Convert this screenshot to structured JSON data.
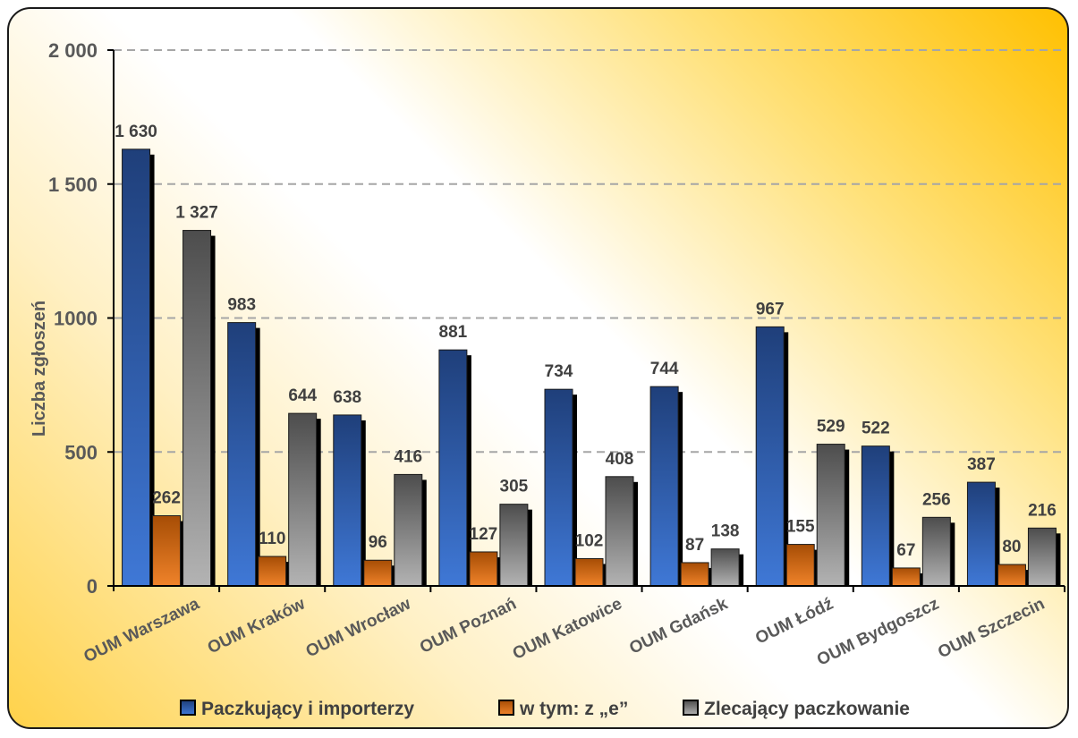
{
  "chart_data": {
    "type": "bar",
    "title": "",
    "xlabel": "",
    "ylabel": "Liczba zgłoszeń",
    "ylim": [
      0,
      2000
    ],
    "yticks": [
      0,
      500,
      1000,
      1500,
      2000
    ],
    "ytick_labels": [
      "0",
      "500",
      "1000",
      "1 500",
      "2 000"
    ],
    "grid": true,
    "legend_position": "bottom",
    "categories": [
      "OUM Warszawa",
      "OUM Kraków",
      "OUM Wrocław",
      "OUM Poznań",
      "OUM Katowice",
      "OUM Gdańsk",
      "OUM Łódź",
      "OUM Bydgoszcz",
      "OUM Szczecin"
    ],
    "series": [
      {
        "name": "Paczkujący i importerzy",
        "color": "#2f5fb3",
        "values": [
          1630,
          983,
          638,
          881,
          734,
          744,
          967,
          522,
          387
        ],
        "labels": [
          "1 630",
          "983",
          "638",
          "881",
          "734",
          "744",
          "967",
          "522",
          "387"
        ]
      },
      {
        "name": "w tym: z „e”",
        "color": "#e46c0a",
        "values": [
          262,
          110,
          96,
          127,
          102,
          87,
          155,
          67,
          80
        ],
        "labels": [
          "262",
          "110",
          "96",
          "127",
          "102",
          "87",
          "155",
          "67",
          "80"
        ]
      },
      {
        "name": "Zlecający paczkowanie",
        "color": "#8c8c8c",
        "values": [
          1327,
          644,
          416,
          305,
          408,
          138,
          529,
          256,
          216
        ],
        "labels": [
          "1 327",
          "644",
          "416",
          "305",
          "408",
          "138",
          "529",
          "256",
          "216"
        ]
      }
    ]
  }
}
